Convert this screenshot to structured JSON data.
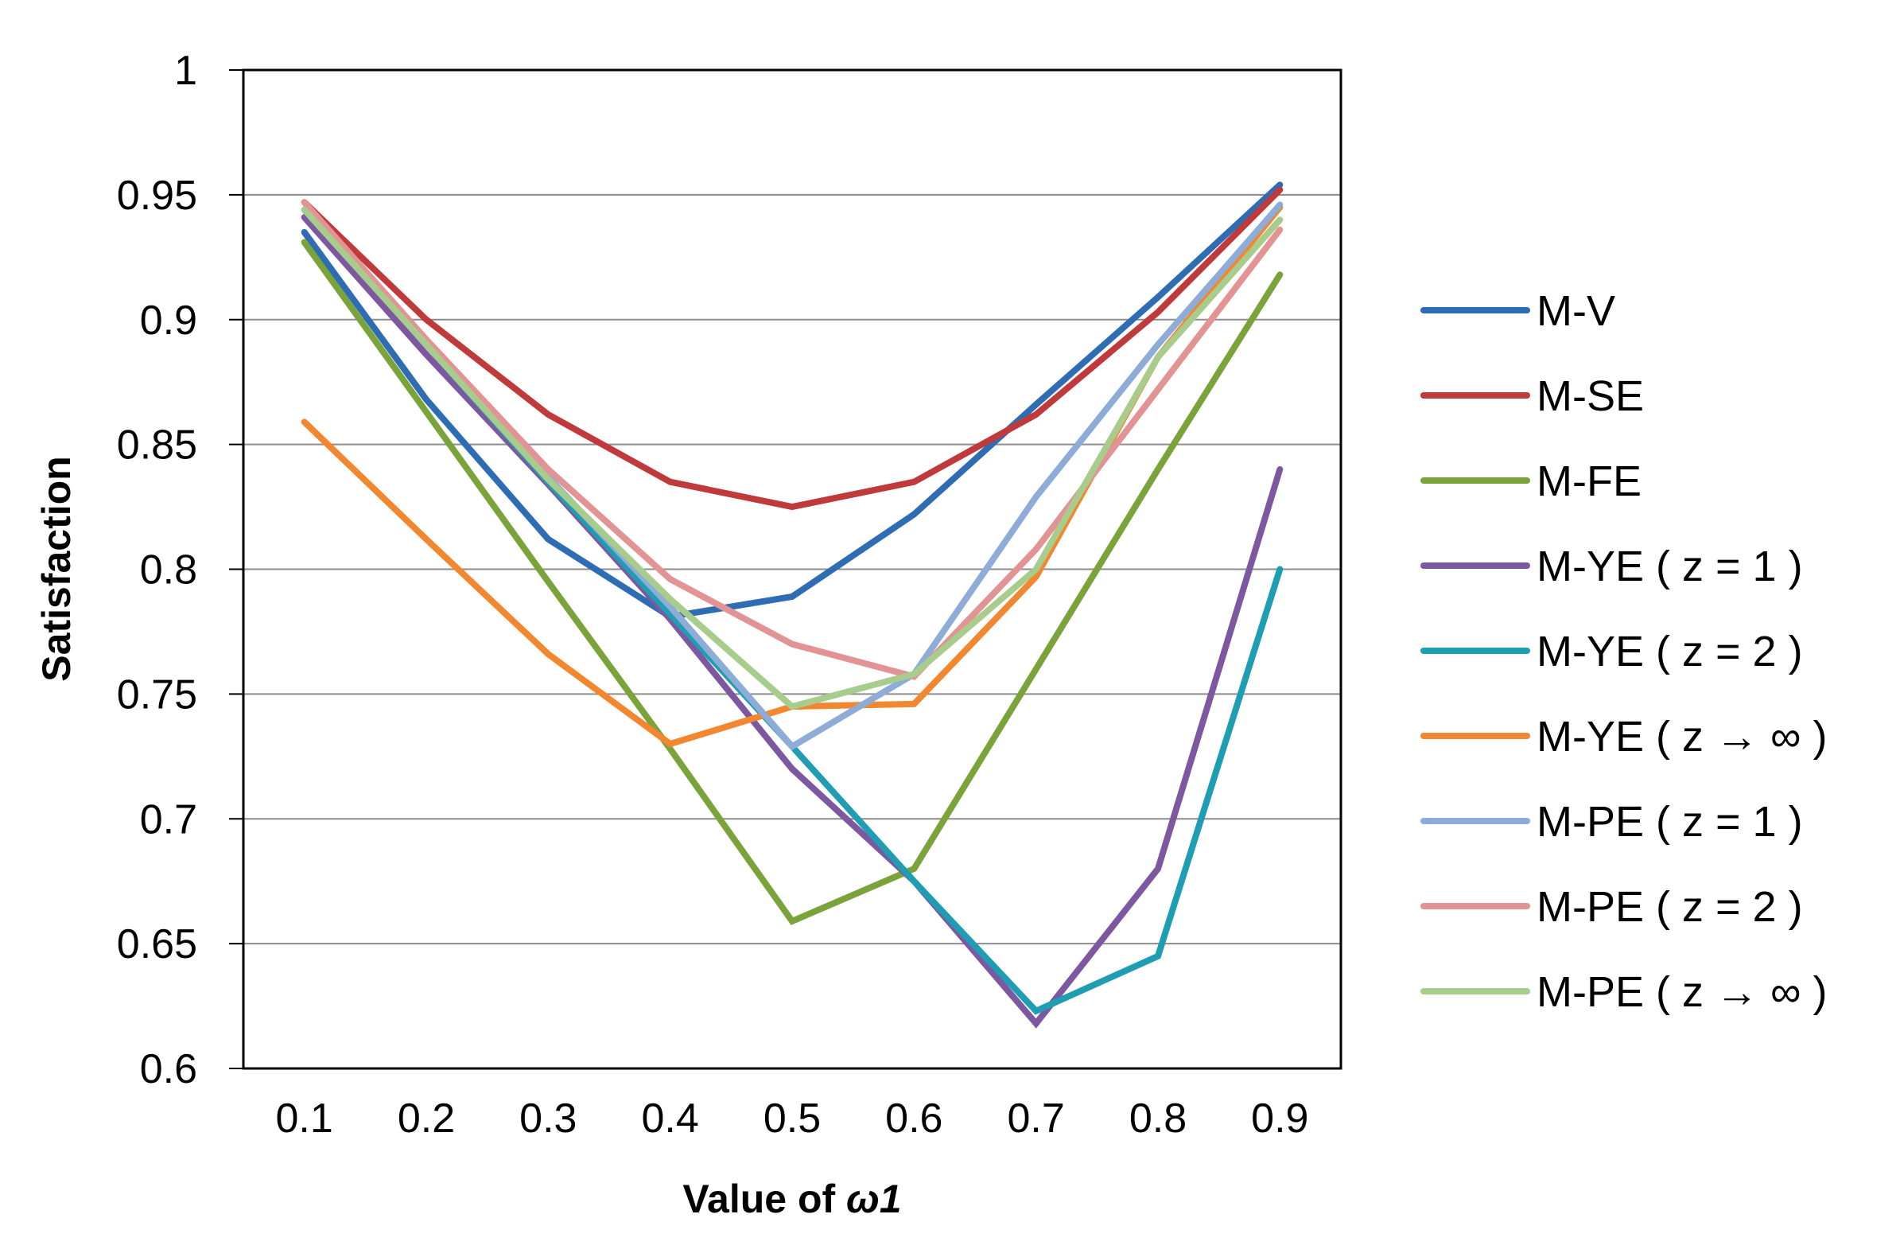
{
  "chart_data": {
    "type": "line",
    "title": "",
    "xlabel": "Value of ω1",
    "xlabel_prefix": "Value of ",
    "xlabel_symbol": "ω1",
    "ylabel": "Satisfaction",
    "categories": [
      "0.1",
      "0.2",
      "0.3",
      "0.4",
      "0.5",
      "0.6",
      "0.7",
      "0.8",
      "0.9"
    ],
    "ylim": [
      0.6,
      1
    ],
    "yticks": [
      "0.6",
      "0.65",
      "0.7",
      "0.75",
      "0.8",
      "0.85",
      "0.9",
      "0.95",
      "1"
    ],
    "grid": true,
    "legend_position": "right",
    "series": [
      {
        "name": "M-V",
        "color": "#2E6DB4",
        "values": [
          0.935,
          0.868,
          0.812,
          0.781,
          0.789,
          0.822,
          0.866,
          0.909,
          0.954
        ]
      },
      {
        "name": "M-SE",
        "color": "#C0393B",
        "values": [
          0.947,
          0.9,
          0.862,
          0.835,
          0.825,
          0.835,
          0.862,
          0.903,
          0.952
        ]
      },
      {
        "name": "M-FE",
        "color": "#7AA33A",
        "values": [
          0.931,
          0.863,
          0.795,
          0.728,
          0.659,
          0.68,
          0.76,
          0.84,
          0.918
        ]
      },
      {
        "name": "M-YE ( z = 1 )",
        "color": "#7D57A0",
        "values": [
          0.941,
          0.886,
          0.834,
          0.78,
          0.72,
          0.675,
          0.618,
          0.68,
          0.84
        ]
      },
      {
        "name": "M-YE ( z = 2 )",
        "color": "#1F9DB3",
        "values": [
          0.944,
          0.89,
          0.835,
          0.782,
          0.729,
          0.675,
          0.623,
          0.645,
          0.8
        ]
      },
      {
        "name": "M-YE ( z → ∞ )",
        "color": "#F2872F",
        "values": [
          0.859,
          0.812,
          0.766,
          0.73,
          0.745,
          0.746,
          0.797,
          0.885,
          0.945
        ]
      },
      {
        "name": "M-PE ( z = 1 )",
        "color": "#8EACD8",
        "values": [
          0.944,
          0.89,
          0.837,
          0.785,
          0.729,
          0.758,
          0.829,
          0.89,
          0.946
        ]
      },
      {
        "name": "M-PE ( z = 2 )",
        "color": "#E29393",
        "values": [
          0.947,
          0.892,
          0.84,
          0.796,
          0.77,
          0.757,
          0.808,
          0.872,
          0.936
        ]
      },
      {
        "name": "M-PE ( z → ∞ )",
        "color": "#A8CC8C",
        "values": [
          0.944,
          0.89,
          0.836,
          0.788,
          0.745,
          0.758,
          0.8,
          0.885,
          0.94
        ]
      }
    ]
  }
}
